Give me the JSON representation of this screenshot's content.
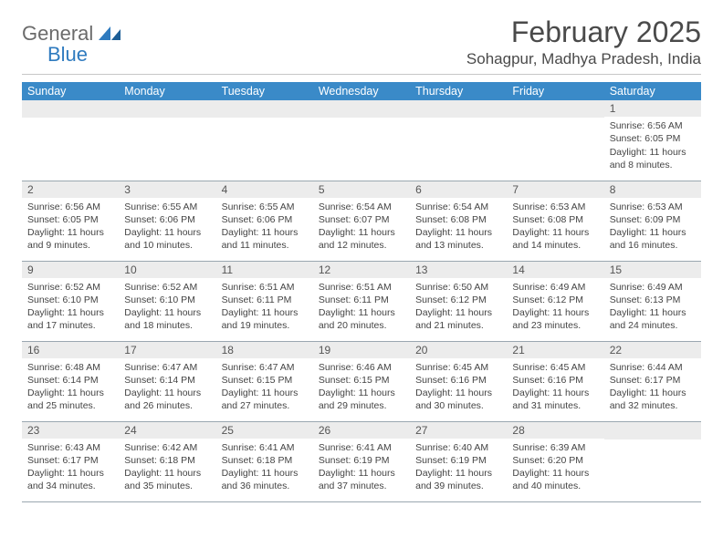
{
  "logo": {
    "text1": "General",
    "text2": "Blue"
  },
  "title": "February 2025",
  "location": "Sohagpur, Madhya Pradesh, India",
  "columns": [
    "Sunday",
    "Monday",
    "Tuesday",
    "Wednesday",
    "Thursday",
    "Friday",
    "Saturday"
  ],
  "colors": {
    "header_bg": "#3a8ac8",
    "header_fg": "#ffffff",
    "daynum_bg": "#ececec",
    "rule": "#9aa7b0",
    "text": "#444444",
    "logo_gray": "#6b6b6b",
    "logo_blue": "#2f7bbf"
  },
  "typography": {
    "title_pt": 32,
    "location_pt": 17,
    "header_pt": 12.5,
    "body_pt": 10.5,
    "daynum_pt": 12
  },
  "layout": {
    "cols": 7,
    "rows": 5,
    "first_weekday_index": 6
  },
  "days": [
    {
      "n": 1,
      "sunrise": "6:56 AM",
      "sunset": "6:05 PM",
      "dl": "11 hours and 8 minutes."
    },
    {
      "n": 2,
      "sunrise": "6:56 AM",
      "sunset": "6:05 PM",
      "dl": "11 hours and 9 minutes."
    },
    {
      "n": 3,
      "sunrise": "6:55 AM",
      "sunset": "6:06 PM",
      "dl": "11 hours and 10 minutes."
    },
    {
      "n": 4,
      "sunrise": "6:55 AM",
      "sunset": "6:06 PM",
      "dl": "11 hours and 11 minutes."
    },
    {
      "n": 5,
      "sunrise": "6:54 AM",
      "sunset": "6:07 PM",
      "dl": "11 hours and 12 minutes."
    },
    {
      "n": 6,
      "sunrise": "6:54 AM",
      "sunset": "6:08 PM",
      "dl": "11 hours and 13 minutes."
    },
    {
      "n": 7,
      "sunrise": "6:53 AM",
      "sunset": "6:08 PM",
      "dl": "11 hours and 14 minutes."
    },
    {
      "n": 8,
      "sunrise": "6:53 AM",
      "sunset": "6:09 PM",
      "dl": "11 hours and 16 minutes."
    },
    {
      "n": 9,
      "sunrise": "6:52 AM",
      "sunset": "6:10 PM",
      "dl": "11 hours and 17 minutes."
    },
    {
      "n": 10,
      "sunrise": "6:52 AM",
      "sunset": "6:10 PM",
      "dl": "11 hours and 18 minutes."
    },
    {
      "n": 11,
      "sunrise": "6:51 AM",
      "sunset": "6:11 PM",
      "dl": "11 hours and 19 minutes."
    },
    {
      "n": 12,
      "sunrise": "6:51 AM",
      "sunset": "6:11 PM",
      "dl": "11 hours and 20 minutes."
    },
    {
      "n": 13,
      "sunrise": "6:50 AM",
      "sunset": "6:12 PM",
      "dl": "11 hours and 21 minutes."
    },
    {
      "n": 14,
      "sunrise": "6:49 AM",
      "sunset": "6:12 PM",
      "dl": "11 hours and 23 minutes."
    },
    {
      "n": 15,
      "sunrise": "6:49 AM",
      "sunset": "6:13 PM",
      "dl": "11 hours and 24 minutes."
    },
    {
      "n": 16,
      "sunrise": "6:48 AM",
      "sunset": "6:14 PM",
      "dl": "11 hours and 25 minutes."
    },
    {
      "n": 17,
      "sunrise": "6:47 AM",
      "sunset": "6:14 PM",
      "dl": "11 hours and 26 minutes."
    },
    {
      "n": 18,
      "sunrise": "6:47 AM",
      "sunset": "6:15 PM",
      "dl": "11 hours and 27 minutes."
    },
    {
      "n": 19,
      "sunrise": "6:46 AM",
      "sunset": "6:15 PM",
      "dl": "11 hours and 29 minutes."
    },
    {
      "n": 20,
      "sunrise": "6:45 AM",
      "sunset": "6:16 PM",
      "dl": "11 hours and 30 minutes."
    },
    {
      "n": 21,
      "sunrise": "6:45 AM",
      "sunset": "6:16 PM",
      "dl": "11 hours and 31 minutes."
    },
    {
      "n": 22,
      "sunrise": "6:44 AM",
      "sunset": "6:17 PM",
      "dl": "11 hours and 32 minutes."
    },
    {
      "n": 23,
      "sunrise": "6:43 AM",
      "sunset": "6:17 PM",
      "dl": "11 hours and 34 minutes."
    },
    {
      "n": 24,
      "sunrise": "6:42 AM",
      "sunset": "6:18 PM",
      "dl": "11 hours and 35 minutes."
    },
    {
      "n": 25,
      "sunrise": "6:41 AM",
      "sunset": "6:18 PM",
      "dl": "11 hours and 36 minutes."
    },
    {
      "n": 26,
      "sunrise": "6:41 AM",
      "sunset": "6:19 PM",
      "dl": "11 hours and 37 minutes."
    },
    {
      "n": 27,
      "sunrise": "6:40 AM",
      "sunset": "6:19 PM",
      "dl": "11 hours and 39 minutes."
    },
    {
      "n": 28,
      "sunrise": "6:39 AM",
      "sunset": "6:20 PM",
      "dl": "11 hours and 40 minutes."
    }
  ],
  "labels": {
    "sunrise": "Sunrise:",
    "sunset": "Sunset:",
    "daylight": "Daylight:"
  }
}
